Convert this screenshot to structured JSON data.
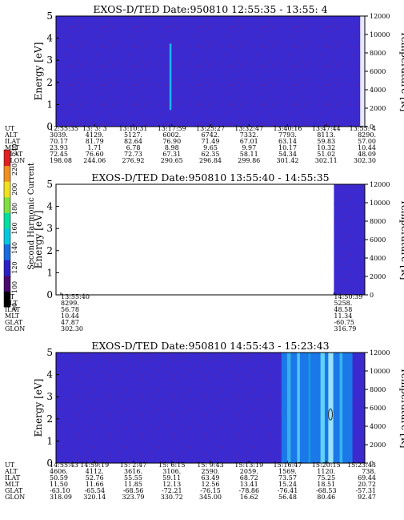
{
  "chart_data": [
    {
      "type": "heatmap",
      "title": "EXOS-D/TED   Date:950810  12:55:35 - 13:55: 4",
      "ylabel": "Energy [eV]",
      "y2label": "Temperature [K]",
      "ylim": [
        0,
        5
      ],
      "y2lim": [
        0,
        12000
      ],
      "yticks": [
        "0",
        "1",
        "2",
        "3",
        "4",
        "5"
      ],
      "y2ticks": [
        "0",
        "2000",
        "4000",
        "6000",
        "8000",
        "10000",
        "12000"
      ],
      "background_color": "#3a2ad0",
      "features": [
        {
          "kind": "spike",
          "at_fraction": 0.37,
          "color": "#19b8f0"
        },
        {
          "kind": "right-edge-band",
          "start_fraction": 0.985,
          "color": "#e8e8ff"
        }
      ],
      "table": {
        "labels": [
          "UT",
          "ALT",
          "ILAT",
          "MLT",
          "GLAT",
          "GLON"
        ],
        "columns": [
          [
            "12:55:35",
            "3039.",
            "70.17",
            "23.93",
            "72.45",
            "198.08"
          ],
          [
            "13: 3: 3",
            "4129.",
            "81.79",
            "1.71",
            "76.60",
            "244.06"
          ],
          [
            "13:10:31",
            "5127.",
            "82.64",
            "6.78",
            "72.73",
            "276.92"
          ],
          [
            "13:17:59",
            "6002.",
            "76.90",
            "8.98",
            "67.31",
            "290.65"
          ],
          [
            "13:25:27",
            "6742.",
            "71.49",
            "9.65",
            "62.35",
            "296.84"
          ],
          [
            "13:32:47",
            "7332.",
            "67.01",
            "9.97",
            "58.11",
            "299.86"
          ],
          [
            "13:40:16",
            "7793.",
            "63.14",
            "10.17",
            "54.34",
            "301.42"
          ],
          [
            "13:47:44",
            "8113.",
            "59.83",
            "10.32",
            "51.02",
            "302.11"
          ],
          [
            "13:55: 4",
            "8290.",
            "57.00",
            "10.44",
            "48.09",
            "302.30"
          ]
        ]
      }
    },
    {
      "type": "heatmap",
      "title": "EXOS-D/TED   Date:950810  13:55:40 - 14:55:35",
      "ylabel": "Energy [eV]",
      "y2label": "Temperature [K]",
      "ylim": [
        0,
        5
      ],
      "y2lim": [
        0,
        12000
      ],
      "yticks": [
        "0",
        "1",
        "2",
        "3",
        "4",
        "5"
      ],
      "y2ticks": [
        "0",
        "2000",
        "4000",
        "6000",
        "8000",
        "10000",
        "12000"
      ],
      "background_color": "#ffffff",
      "features": [
        {
          "kind": "data-block",
          "start_fraction": 0.9,
          "end_fraction": 1.0,
          "color": "#3a2ad0"
        }
      ],
      "colorbar": {
        "label": "Second Harmonic Current",
        "ticks": [
          "80",
          "100",
          "120",
          "140",
          "160",
          "180",
          "200",
          "220",
          "240"
        ],
        "range": [
          80,
          240
        ],
        "colors": [
          "#000000",
          "#4a0a70",
          "#2a20c8",
          "#1a6ae0",
          "#00c8e0",
          "#00e0a0",
          "#80e040",
          "#f0e020",
          "#f09020",
          "#e02020"
        ]
      },
      "table": {
        "labels": [
          "UT",
          "ALT",
          "ILAT",
          "MLT",
          "GLAT",
          "GLON"
        ],
        "columns": [
          [
            "13:55:40",
            "8299.",
            "56.78",
            "10.44",
            "47.87",
            "302.30"
          ],
          [
            "14:50:39",
            "5258.",
            "48.58",
            "11.34",
            "-60.75",
            "316.79"
          ]
        ]
      }
    },
    {
      "type": "heatmap",
      "title": "EXOS-D/TED   Date:950810  14:55:43 - 15:23:43",
      "ylabel": "Energy [eV]",
      "y2label": "Temperature [K]",
      "ylim": [
        0,
        5
      ],
      "y2lim": [
        0,
        12000
      ],
      "yticks": [
        "0",
        "1",
        "2",
        "3",
        "4",
        "5"
      ],
      "y2ticks": [
        "0",
        "2000",
        "4000",
        "6000",
        "8000",
        "10000",
        "12000"
      ],
      "background_color": "#3a2ad0",
      "features": [
        {
          "kind": "bright-band",
          "start_fraction": 0.73,
          "end_fraction": 0.96,
          "color": "#1a78e8"
        }
      ],
      "table": {
        "labels": [
          "UT",
          "ALT",
          "ILAT",
          "MLT",
          "GLAT",
          "GLON"
        ],
        "columns": [
          [
            "14:55:43",
            "4606.",
            "50.59",
            "11.50",
            "-63.10",
            "318.09"
          ],
          [
            "14:59:19",
            "4112.",
            "52.76",
            "11.66",
            "-65.54",
            "320.14"
          ],
          [
            "15: 2:47",
            "3616.",
            "55.55",
            "11.85",
            "-68.56",
            "323.79"
          ],
          [
            "15: 6:15",
            "3106.",
            "59.11",
            "12.13",
            "-72.21",
            "330.72"
          ],
          [
            "15: 9:43",
            "2590.",
            "63.49",
            "12.56",
            "-76.15",
            "345.00"
          ],
          [
            "15:13:19",
            "2059.",
            "68.72",
            "13.41",
            "-78.86",
            "16.62"
          ],
          [
            "15:16:47",
            "1569.",
            "73.57",
            "15.24",
            "-76.41",
            "56.48"
          ],
          [
            "15:20:15",
            "1120.",
            "75.25",
            "18.51",
            "-68.53",
            "80.46"
          ],
          [
            "15:23:43",
            "738.",
            "69.44",
            "20.72",
            "-57.31",
            "92.47"
          ]
        ]
      }
    }
  ]
}
